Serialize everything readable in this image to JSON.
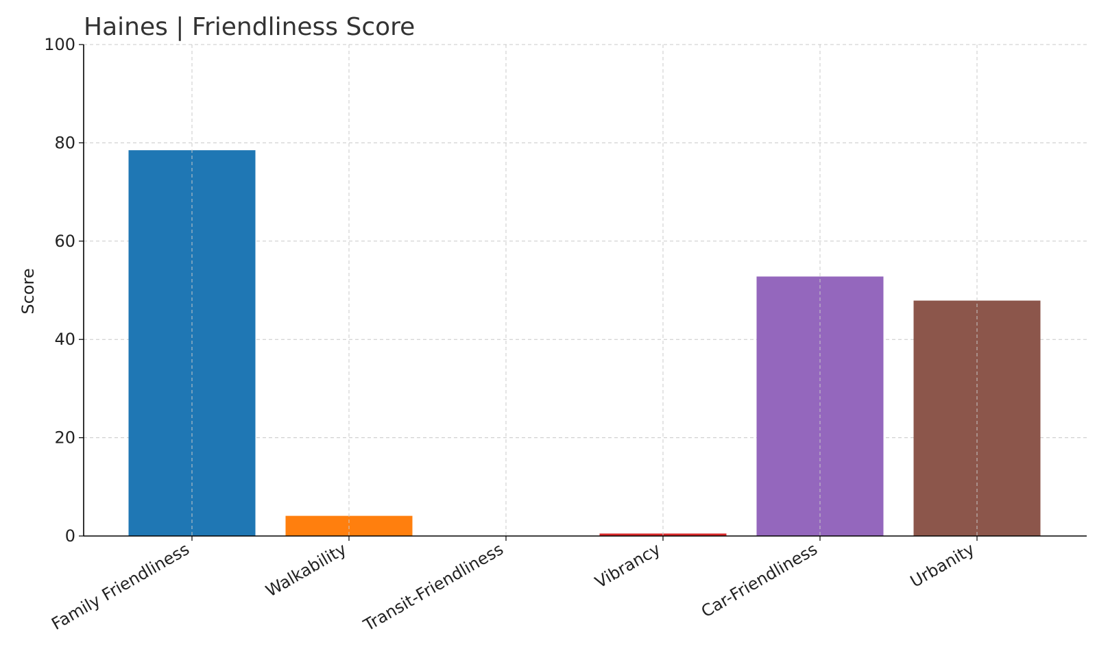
{
  "chart_data": {
    "type": "bar",
    "title": "Haines | Friendliness Score",
    "xlabel": "",
    "ylabel": "Score",
    "categories": [
      "Family Friendliness",
      "Walkability",
      "Transit-Friendliness",
      "Vibrancy",
      "Car-Friendliness",
      "Urbanity"
    ],
    "values": [
      78.5,
      4.1,
      0.0,
      0.5,
      52.8,
      47.9
    ],
    "colors": [
      "#1f77b4",
      "#ff7f0e",
      "#2ca02c",
      "#d62728",
      "#9467bd",
      "#8c564b"
    ],
    "ylim": [
      0,
      100
    ],
    "yticks": [
      0,
      20,
      40,
      60,
      80,
      100
    ],
    "grid": true
  }
}
